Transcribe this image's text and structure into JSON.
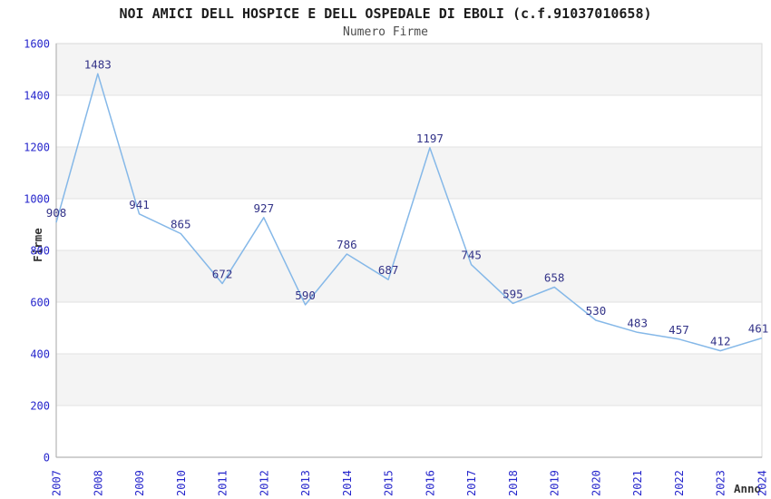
{
  "chart_data": {
    "type": "line",
    "title": "NOI AMICI DELL HOSPICE E DELL OSPEDALE DI EBOLI (c.f.91037010658)",
    "subtitle": "Numero Firme",
    "xlabel": "Anno",
    "ylabel": "Firme",
    "categories": [
      "2007",
      "2008",
      "2009",
      "2010",
      "2011",
      "2012",
      "2013",
      "2014",
      "2015",
      "2016",
      "2017",
      "2018",
      "2019",
      "2020",
      "2021",
      "2022",
      "2023",
      "2024"
    ],
    "values": [
      908,
      1483,
      941,
      865,
      672,
      927,
      590,
      786,
      687,
      1197,
      745,
      595,
      658,
      530,
      483,
      457,
      412,
      461
    ],
    "ylim": [
      0,
      1600
    ],
    "ytick_step": 200,
    "yticks": [
      0,
      200,
      400,
      600,
      800,
      1000,
      1200,
      1400,
      1600
    ],
    "grid": "horizontal-bands-alternating",
    "legend_position": "none",
    "point_labels_visible": true,
    "colors": {
      "line": "#85b8e8",
      "tick_label": "#2626cc",
      "point_label": "#333388",
      "band_fill": "#f4f4f4",
      "gridline": "#e2e2e2",
      "plot_border": "#d9d9d9",
      "axis_line": "#b5b5b5",
      "title_text": "#1c1c1c",
      "subtitle_text": "#4d4d4d",
      "axis_title_text": "#333333"
    }
  }
}
